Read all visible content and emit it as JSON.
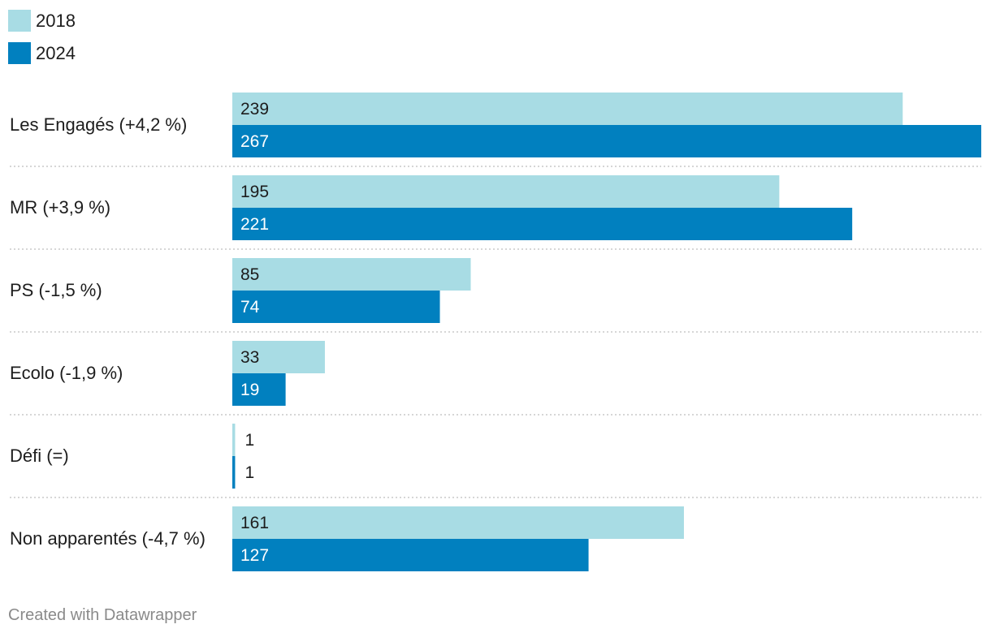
{
  "chart_data": {
    "type": "bar",
    "orientation": "horizontal",
    "categories": [
      "Les Engagés (+4,2 %)",
      "MR (+3,9 %)",
      "PS (-1,5 %)",
      "Ecolo (-1,9 %)",
      "Défi (=)",
      "Non apparentés (-4,7 %)"
    ],
    "series": [
      {
        "name": "2018",
        "color": "#a8dce4",
        "values": [
          239,
          195,
          85,
          33,
          1,
          161
        ]
      },
      {
        "name": "2024",
        "color": "#0180bf",
        "values": [
          267,
          221,
          74,
          19,
          1,
          127
        ]
      }
    ],
    "xlim": [
      0,
      267
    ],
    "legend_position": "top-left",
    "grid": false
  },
  "footer": "Created with Datawrapper"
}
